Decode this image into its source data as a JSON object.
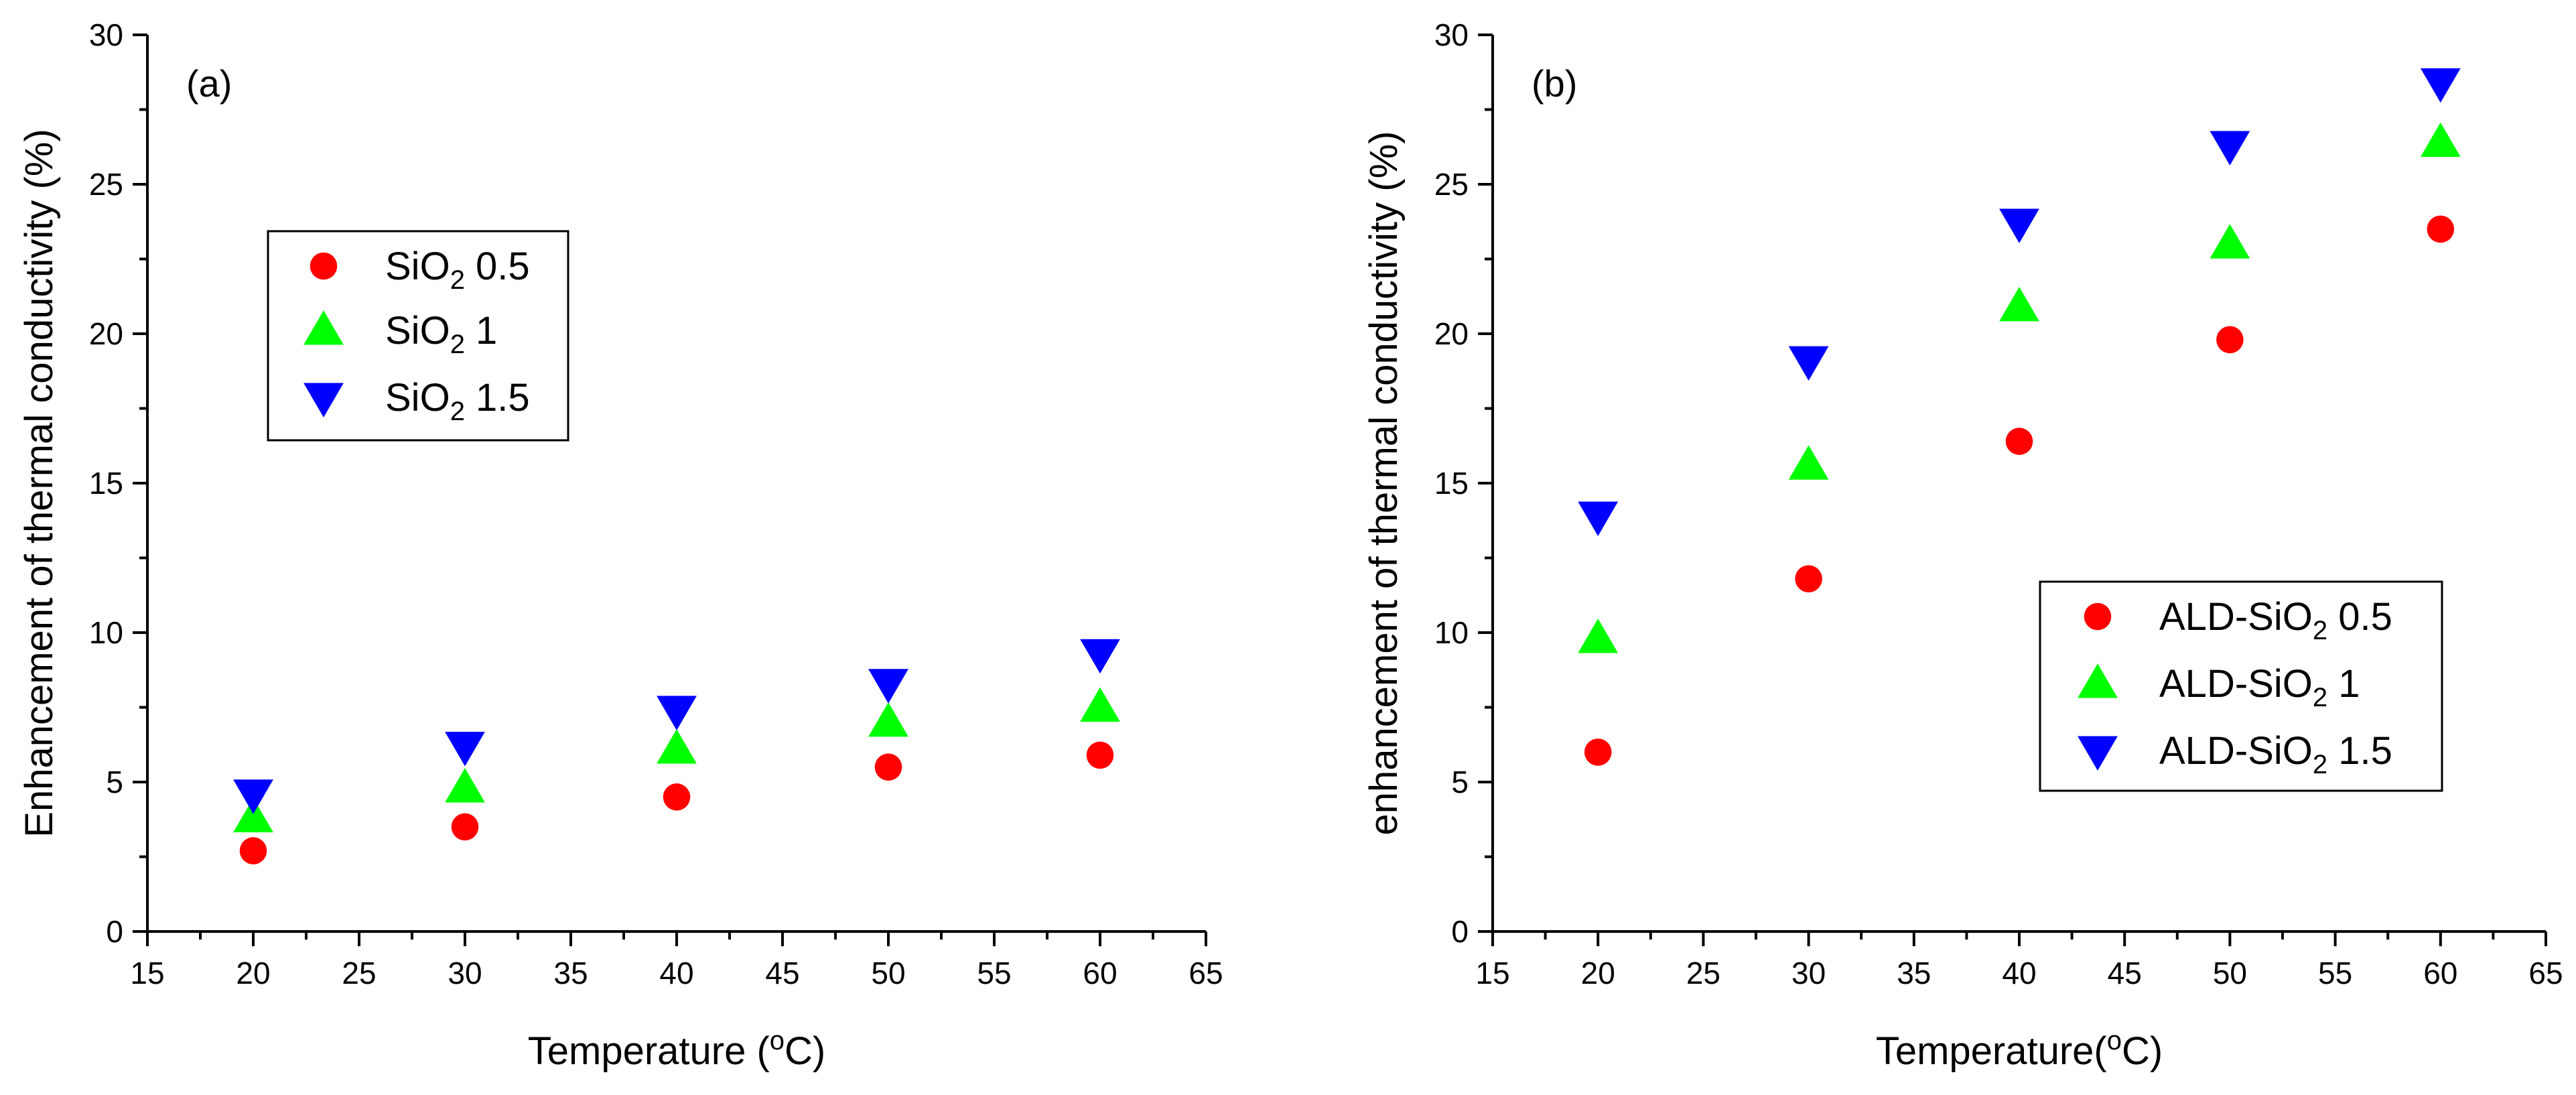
{
  "colors": {
    "series_0_5": "#ff0000",
    "series_1": "#00ff00",
    "series_1_5": "#0000ff",
    "axis": "#000000",
    "background": "#ffffff"
  },
  "chart_data": [
    {
      "type": "scatter",
      "panel_label": "(a)",
      "xlabel_main": "Temperature (",
      "xlabel_sup": "o",
      "xlabel_end": "C)",
      "ylabel": "Enhancement of thermal conductivity (%)",
      "xlim": [
        15,
        65
      ],
      "ylim": [
        0,
        30
      ],
      "xticks": [
        15,
        20,
        25,
        30,
        35,
        40,
        45,
        50,
        55,
        60,
        65
      ],
      "yticks": [
        0,
        5,
        10,
        15,
        20,
        25,
        30
      ],
      "legend_placement": "upper-left",
      "x": [
        20,
        30,
        40,
        50,
        60
      ],
      "series": [
        {
          "name": "SiO2 0.5",
          "prefix": "SiO",
          "sub": "2",
          "suffix": " 0.5",
          "marker": "circle",
          "color": "#ff0000",
          "values": [
            2.7,
            3.5,
            4.5,
            5.5,
            5.9
          ]
        },
        {
          "name": "SiO2 1",
          "prefix": "SiO",
          "sub": "2",
          "suffix": " 1",
          "marker": "triangle-up",
          "color": "#00ff00",
          "values": [
            3.8,
            4.8,
            6.1,
            7.0,
            7.5
          ]
        },
        {
          "name": "SiO2 1.5",
          "prefix": "SiO",
          "sub": "2",
          "suffix": " 1.5",
          "marker": "triangle-down",
          "color": "#0000ff",
          "values": [
            4.6,
            6.2,
            7.4,
            8.3,
            9.3
          ]
        }
      ]
    },
    {
      "type": "scatter",
      "panel_label": "(b)",
      "xlabel_main": "Temperature(",
      "xlabel_sup": "o",
      "xlabel_end": "C)",
      "ylabel": "enhancement of thermal conductivity (%)",
      "xlim": [
        15,
        65
      ],
      "ylim": [
        0,
        30
      ],
      "xticks": [
        15,
        20,
        25,
        30,
        35,
        40,
        45,
        50,
        55,
        60,
        65
      ],
      "yticks": [
        0,
        5,
        10,
        15,
        20,
        25,
        30
      ],
      "legend_placement": "lower-right",
      "x": [
        20,
        30,
        40,
        50,
        60
      ],
      "series": [
        {
          "name": "ALD-SiO2 0.5",
          "prefix": "ALD-SiO",
          "sub": "2",
          "suffix": " 0.5",
          "marker": "circle",
          "color": "#ff0000",
          "values": [
            6.0,
            11.8,
            16.4,
            19.8,
            23.5
          ]
        },
        {
          "name": "ALD-SiO2 1",
          "prefix": "ALD-SiO",
          "sub": "2",
          "suffix": " 1",
          "marker": "triangle-up",
          "color": "#00ff00",
          "values": [
            9.8,
            15.6,
            20.9,
            23.0,
            26.4
          ]
        },
        {
          "name": "ALD-SiO2 1.5",
          "prefix": "ALD-SiO",
          "sub": "2",
          "suffix": " 1.5",
          "marker": "triangle-down",
          "color": "#0000ff",
          "values": [
            13.9,
            19.1,
            23.7,
            26.3,
            28.4
          ]
        }
      ]
    }
  ]
}
